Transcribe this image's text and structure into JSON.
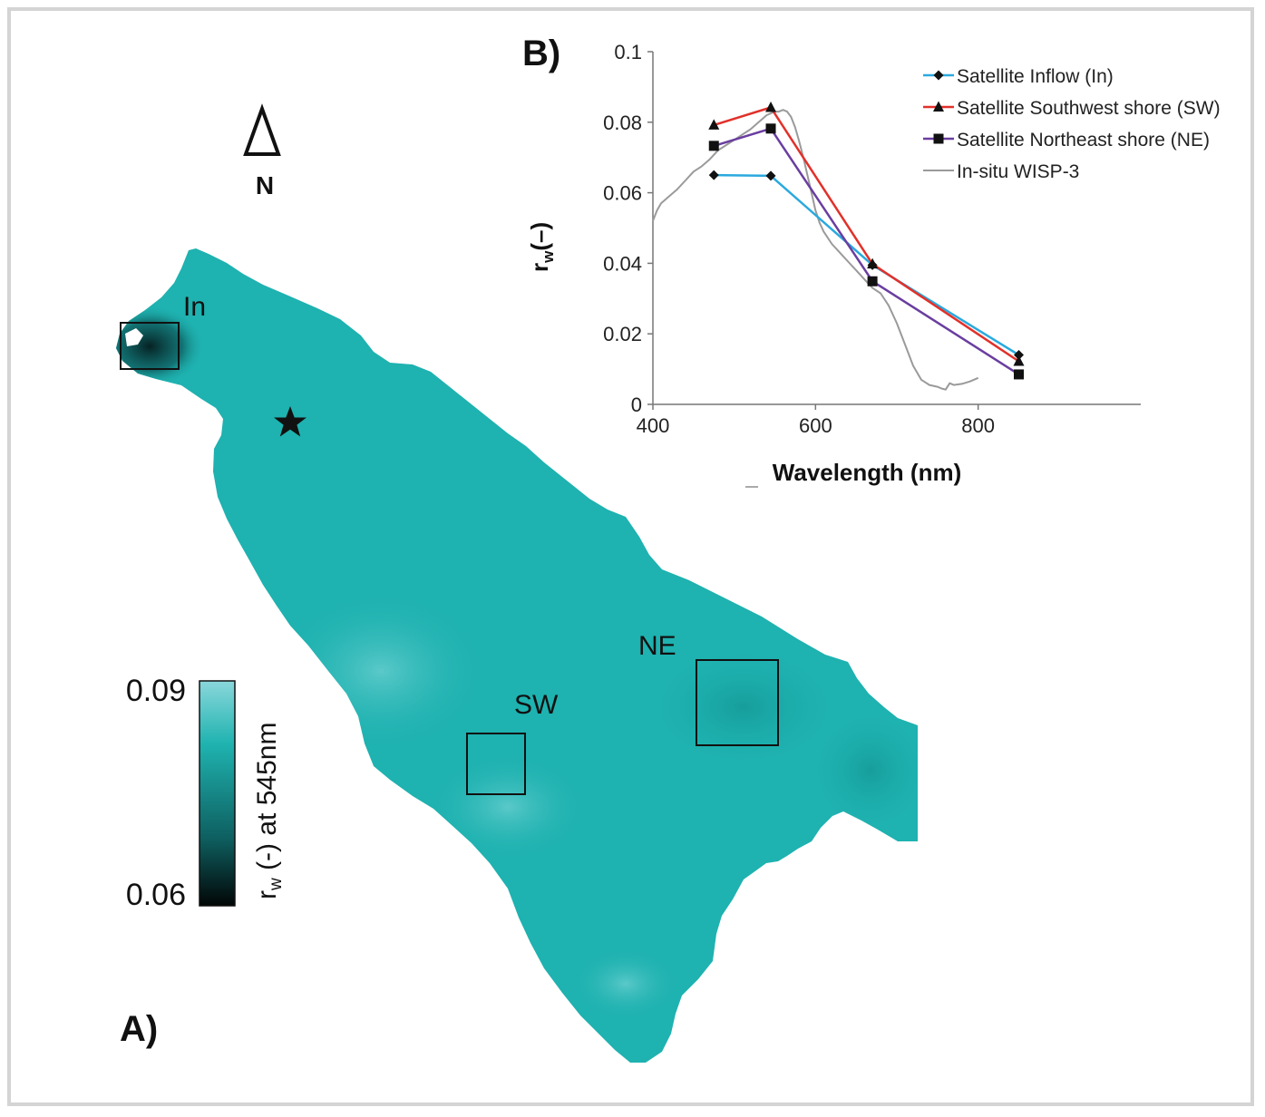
{
  "panel_a": {
    "label": "A)",
    "north_label": "N",
    "regions": [
      {
        "label": "In"
      },
      {
        "label": "SW"
      },
      {
        "label": "NE"
      }
    ],
    "colorbar": {
      "max_label": "0.09",
      "min_label": "0.06",
      "title_main": "r",
      "title_sub": "w",
      "title_rest": " (-) at 545nm",
      "color_top": "#8ad7db",
      "color_mid": "#1fb3b0",
      "color_low": "#0e5f60",
      "color_bottom": "#020606"
    },
    "lake_color": "#1eb2b0"
  },
  "panel_b": {
    "label": "B)"
  },
  "chart_data": {
    "type": "line",
    "title": "",
    "xlabel": "Wavelength (nm)",
    "ylabel_main": "r",
    "ylabel_sub": "w",
    "ylabel_rest": "(–)",
    "xlim": [
      400,
      1000
    ],
    "ylim": [
      0,
      0.1
    ],
    "x_ticks": [
      400,
      600,
      800
    ],
    "y_ticks": [
      0,
      0.02,
      0.04,
      0.06,
      0.08,
      0.1
    ],
    "y_tick_labels": [
      "0",
      "0.02",
      "0.04",
      "0.06",
      "0.08",
      "0.1"
    ],
    "grid": false,
    "legend_position": "top-right",
    "series": [
      {
        "name": "Satellite Inflow (In)",
        "color": "#2aa9de",
        "marker": "diamond",
        "x": [
          475,
          545,
          670,
          850
        ],
        "y": [
          0.065,
          0.0648,
          0.0395,
          0.014
        ]
      },
      {
        "name": "Satellite Southwest shore (SW)",
        "color": "#e2302a",
        "marker": "triangle",
        "x": [
          475,
          545,
          670,
          850
        ],
        "y": [
          0.0792,
          0.0842,
          0.0398,
          0.0122
        ]
      },
      {
        "name": "Satellite Northeast shore (NE)",
        "color": "#6a3ea0",
        "marker": "square",
        "x": [
          475,
          545,
          670,
          850
        ],
        "y": [
          0.0733,
          0.0782,
          0.0349,
          0.0085
        ]
      },
      {
        "name": "In-situ WISP-3",
        "color": "#9a9a9a",
        "marker": "none",
        "x": [
          400,
          405,
          410,
          420,
          430,
          440,
          450,
          460,
          470,
          480,
          490,
          500,
          510,
          520,
          530,
          540,
          550,
          555,
          560,
          565,
          570,
          575,
          580,
          585,
          590,
          595,
          600,
          605,
          610,
          620,
          630,
          640,
          650,
          660,
          670,
          680,
          690,
          700,
          710,
          720,
          730,
          740,
          750,
          755,
          760,
          765,
          770,
          780,
          790,
          800
        ],
        "y": [
          0.052,
          0.055,
          0.057,
          0.059,
          0.061,
          0.0635,
          0.066,
          0.0675,
          0.0695,
          0.072,
          0.0735,
          0.075,
          0.0765,
          0.078,
          0.08,
          0.082,
          0.083,
          0.083,
          0.0835,
          0.083,
          0.0815,
          0.0785,
          0.0745,
          0.07,
          0.065,
          0.06,
          0.055,
          0.0515,
          0.049,
          0.0455,
          0.043,
          0.0405,
          0.038,
          0.0355,
          0.033,
          0.0315,
          0.028,
          0.023,
          0.017,
          0.011,
          0.007,
          0.0055,
          0.005,
          0.0045,
          0.0042,
          0.006,
          0.0055,
          0.0058,
          0.0065,
          0.0075
        ]
      }
    ]
  }
}
